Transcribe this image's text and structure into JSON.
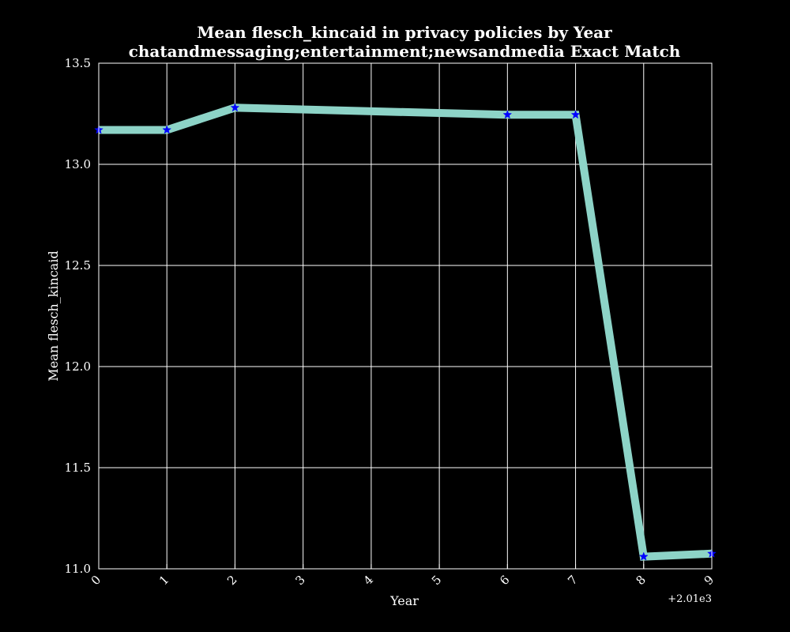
{
  "chart_data": {
    "type": "line",
    "title": "Mean flesch_kincaid in privacy policies by Year",
    "subtitle": "chatandmessaging;entertainment;newsandmedia Exact Match",
    "xlabel": "Year",
    "ylabel": "Mean flesch_kincaid",
    "x_offset_label": "+2.01e3",
    "xlim": [
      0,
      9
    ],
    "ylim": [
      11.0,
      13.5
    ],
    "x_ticks": [
      0,
      1,
      2,
      3,
      4,
      5,
      6,
      7,
      8,
      9
    ],
    "x_tick_labels": [
      "0",
      "1",
      "2",
      "3",
      "4",
      "5",
      "6",
      "7",
      "8",
      "9"
    ],
    "y_ticks": [
      11.0,
      11.5,
      12.0,
      12.5,
      13.0,
      13.5
    ],
    "y_tick_labels": [
      "11.0",
      "11.5",
      "12.0",
      "12.5",
      "13.0",
      "13.5"
    ],
    "grid": true,
    "series": [
      {
        "name": "Mean flesch_kincaid",
        "x": [
          0,
          1,
          2,
          6,
          7,
          8,
          9
        ],
        "values": [
          13.17,
          13.17,
          13.28,
          13.245,
          13.245,
          11.06,
          11.075
        ],
        "line_color": "#8dd3c7",
        "marker": "star",
        "marker_color": "#0000ff"
      }
    ]
  },
  "colors": {
    "background": "#000000",
    "axes": "#ffffff",
    "grid": "#ffffff",
    "text": "#ffffff"
  }
}
